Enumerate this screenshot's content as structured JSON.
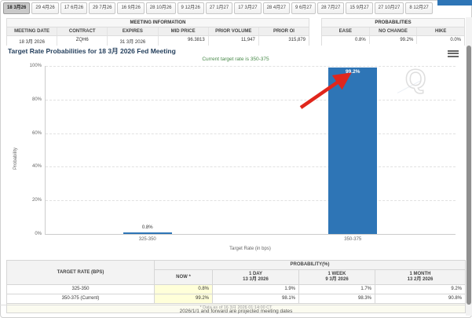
{
  "tabs": {
    "items": [
      {
        "label": "18 3月26",
        "selected": true
      },
      {
        "label": "29 4月26",
        "selected": false
      },
      {
        "label": "17 6月26",
        "selected": false
      },
      {
        "label": "29 7月26",
        "selected": false
      },
      {
        "label": "16 9月26",
        "selected": false
      },
      {
        "label": "28 10月26",
        "selected": false
      },
      {
        "label": "9 12月26",
        "selected": false
      },
      {
        "label": "27 1月27",
        "selected": false
      },
      {
        "label": "17 3月27",
        "selected": false
      },
      {
        "label": "28 4月27",
        "selected": false
      },
      {
        "label": "9 6月27",
        "selected": false
      },
      {
        "label": "28 7月27",
        "selected": false
      },
      {
        "label": "15 9月27",
        "selected": false
      },
      {
        "label": "27 10月27",
        "selected": false
      },
      {
        "label": "8 12月27",
        "selected": false
      }
    ]
  },
  "meeting_information": {
    "title": "MEETING INFORMATION",
    "columns": [
      "MEETING DATE",
      "CONTRACT",
      "EXPIRES",
      "MID PRICE",
      "PRIOR VOLUME",
      "PRIOR OI"
    ],
    "values": [
      "18 3月 2026",
      "ZQH6",
      "31 3月 2026",
      "96.3813",
      "11,947",
      "315,879"
    ]
  },
  "probabilities_summary": {
    "title": "PROBABILITIES",
    "columns": [
      "EASE",
      "NO CHANGE",
      "HIKE"
    ],
    "values": [
      "0.8%",
      "99.2%",
      "0.0%"
    ]
  },
  "chart_data": {
    "type": "bar",
    "title": "Target Rate Probabilities for 18 3月 2026 Fed Meeting",
    "subtitle": "Current target rate is 350-375",
    "categories": [
      "325-350",
      "350-375"
    ],
    "values": [
      0.8,
      99.2
    ],
    "bar_labels": [
      "0.8%",
      "99.2%"
    ],
    "xlabel": "Target Rate (in bps)",
    "ylabel": "Probability",
    "ylim": [
      0,
      100
    ],
    "yticks": [
      "100%",
      "80%",
      "60%",
      "40%",
      "20%",
      "0%"
    ],
    "grid": "dashed-horizontal",
    "legend": "none",
    "bar_color": "#2e75b6",
    "annotation": "red arrow pointing at the 99.2% bar label",
    "annotation_color": "#e0261c",
    "watermark_glyph": "Q"
  },
  "history_table": {
    "col1_header": "TARGET RATE (BPS)",
    "group_header": "PROBABILITY(%)",
    "columns": [
      {
        "line1": "NOW *",
        "line2": ""
      },
      {
        "line1": "1 DAY",
        "line2": "13 3月 2026"
      },
      {
        "line1": "1 WEEK",
        "line2": "9 3月 2026"
      },
      {
        "line1": "1 MONTH",
        "line2": "13 2月 2026"
      }
    ],
    "rows": [
      {
        "rate": "325-350",
        "now": "0.8%",
        "day": "1.9%",
        "week": "1.7%",
        "month": "9.2%"
      },
      {
        "rate": "350-375 (Current)",
        "now": "99.2%",
        "day": "98.1%",
        "week": "98.3%",
        "month": "90.8%"
      }
    ],
    "footnote": "* Data as of 16 3月 2026 01:14:00 CT"
  },
  "footer": {
    "note": "2026/1/1 and forward are projected meeting dates"
  }
}
